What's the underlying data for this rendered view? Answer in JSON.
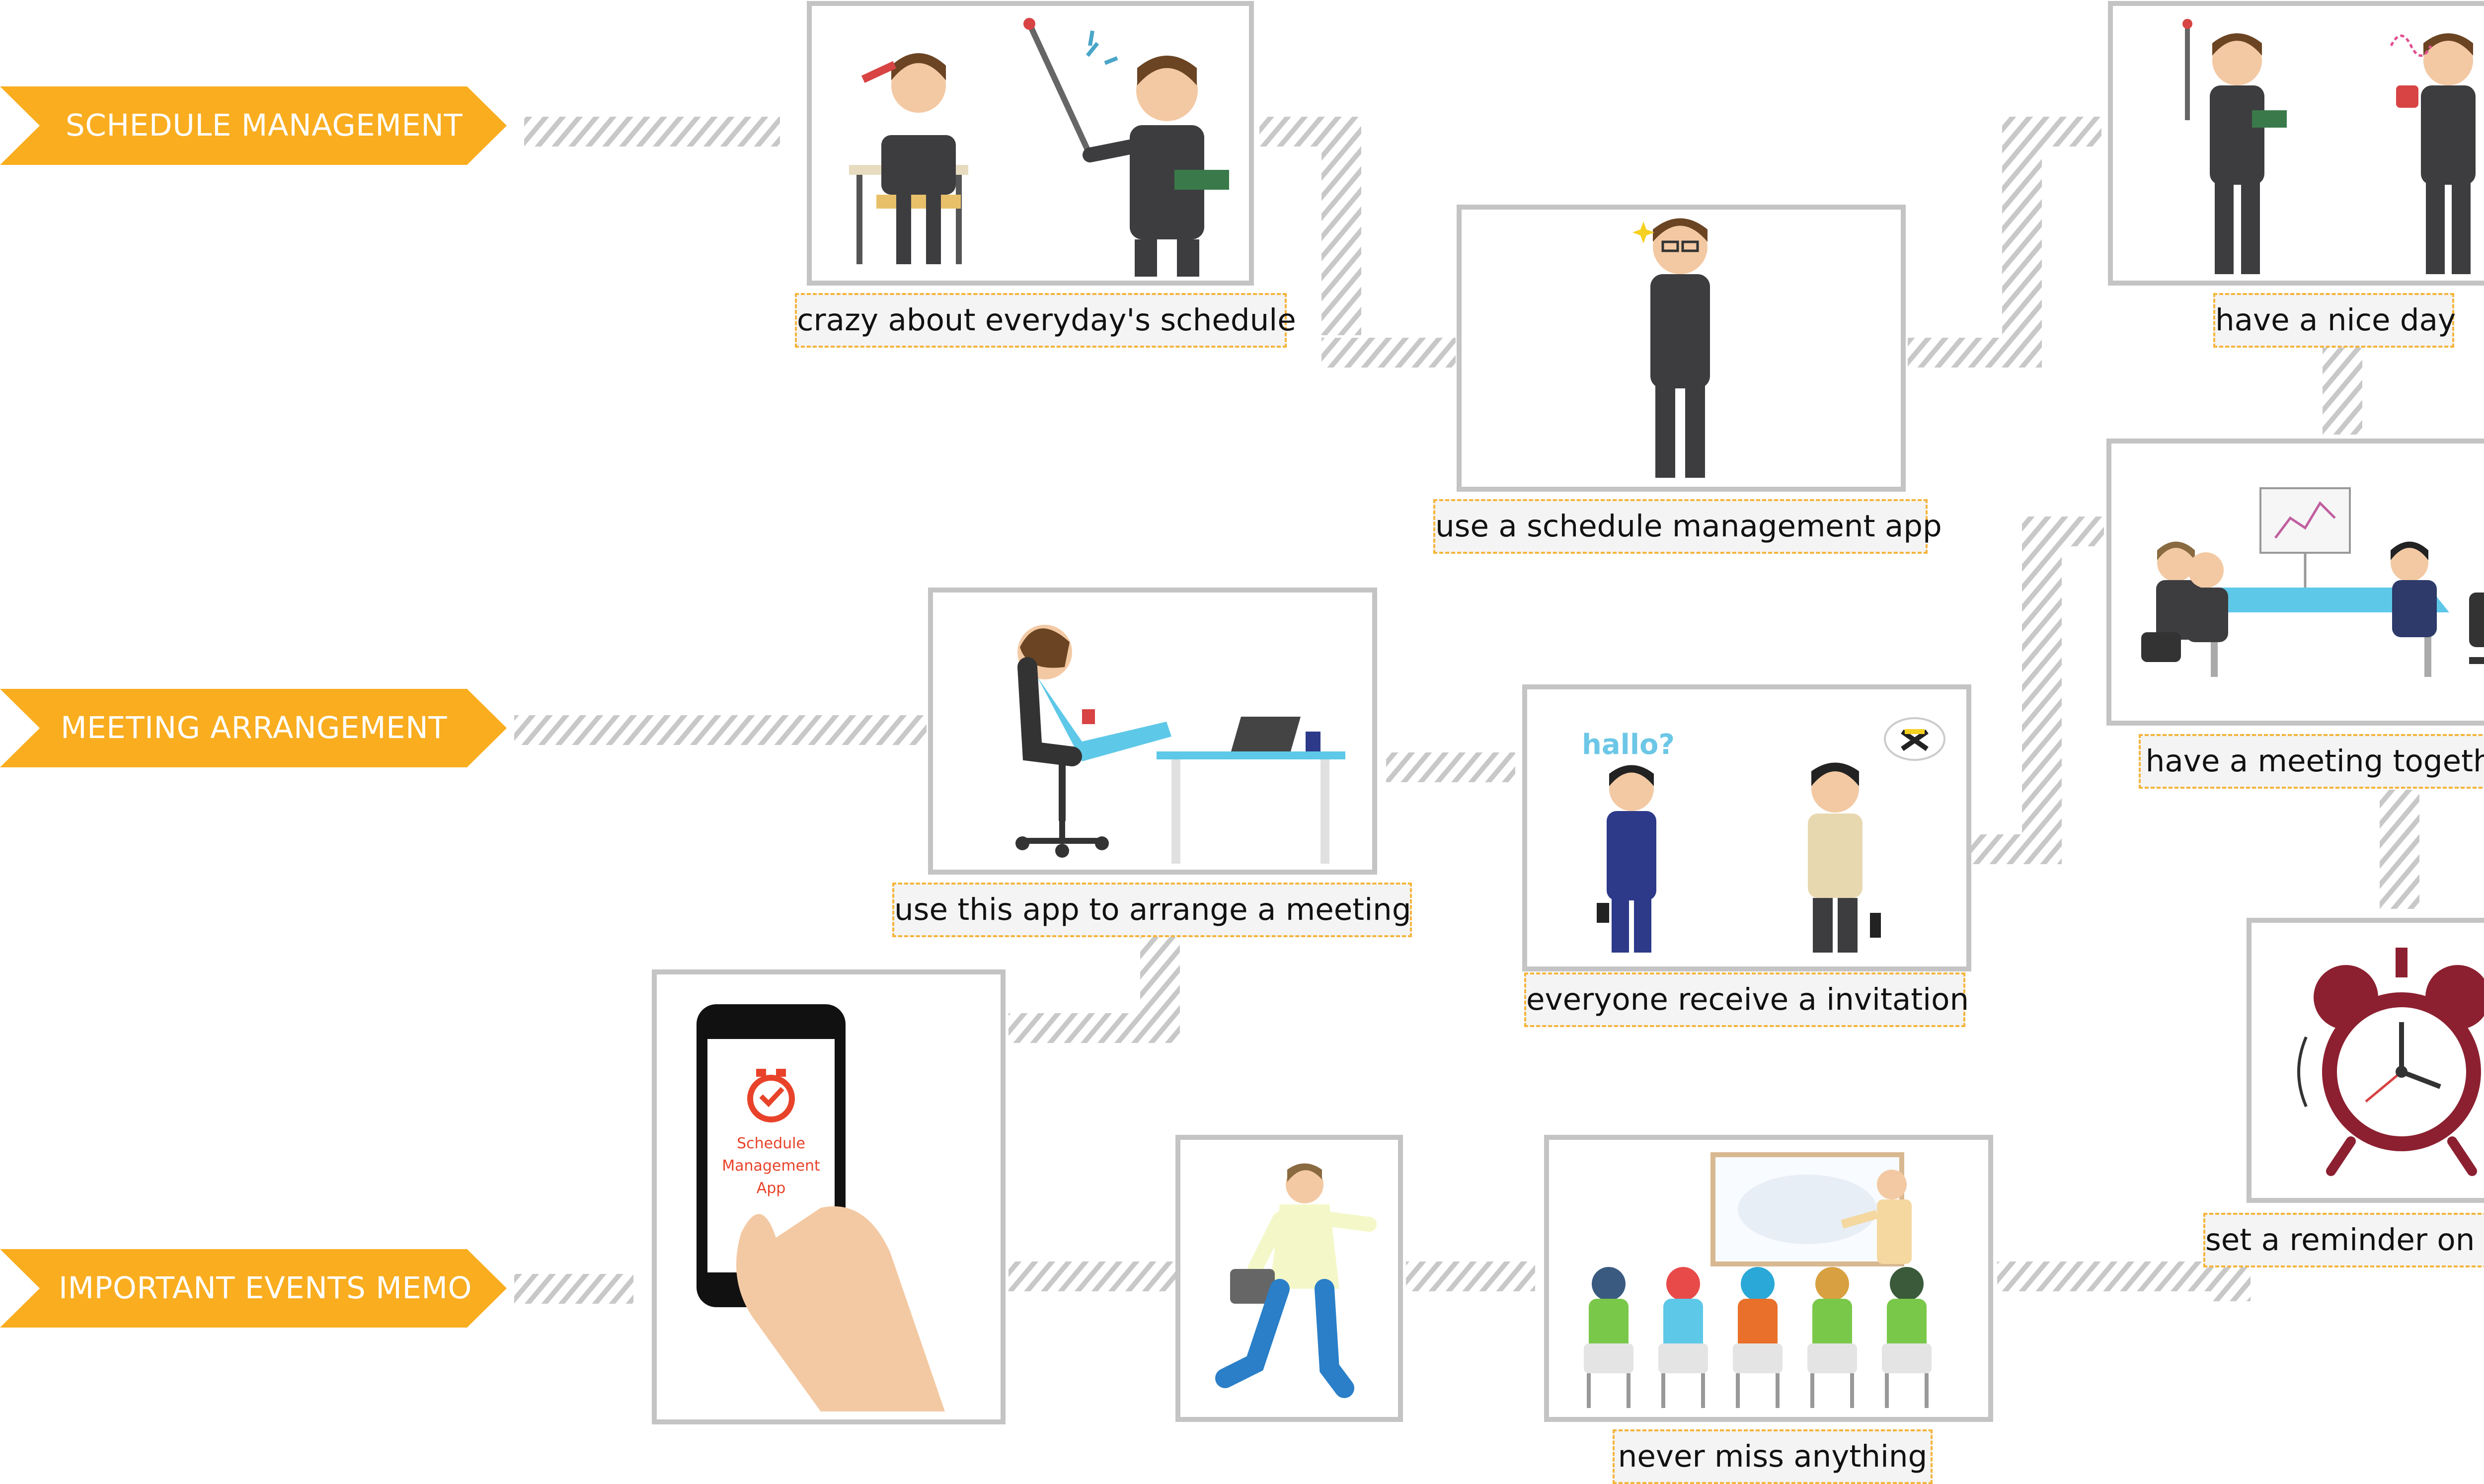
{
  "rows": [
    {
      "label": "SCHEDULE MANAGEMENT"
    },
    {
      "label": "MEETING ARRANGEMENT"
    },
    {
      "label": "IMPORTANT EVENTS MEMO"
    }
  ],
  "steps": [
    {
      "caption": "crazy about everyday's schedule"
    },
    {
      "caption": "use a schedule management app"
    },
    {
      "caption": "have a nice day"
    },
    {
      "caption": "use this app to arrange a meeting"
    },
    {
      "caption": "everyone receive a invitation"
    },
    {
      "caption": "have a meeting together"
    },
    {
      "caption": "set a reminder on the app"
    },
    {
      "caption": "never miss anything"
    }
  ],
  "phone_screen": {
    "line1": "Schedule",
    "line2": "Management",
    "line3": "App"
  },
  "bubble_text": "hallo?",
  "colors": {
    "banner": "#f9ad1f",
    "frame": "#c4c4c4",
    "caption_border": "#f5b43a",
    "hatch": "#c8c8c8"
  }
}
